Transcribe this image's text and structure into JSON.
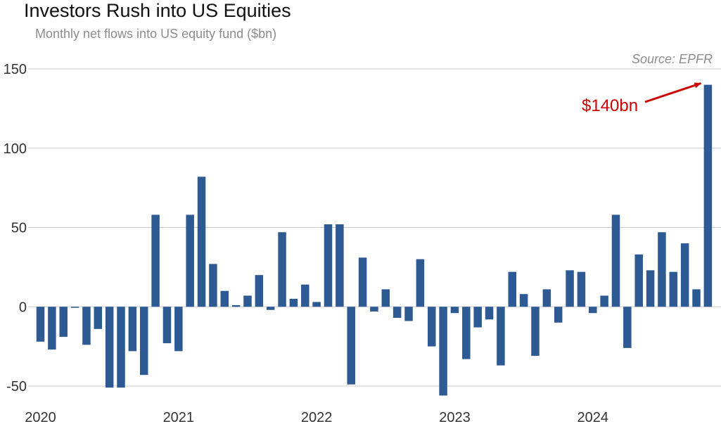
{
  "chart_data": {
    "type": "bar",
    "title": "Investors Rush into US Equities",
    "subtitle": "Monthly net flows into US equity fund ($bn)",
    "source": "Source: EPFR",
    "xlabel": "",
    "ylabel": "",
    "ylim": [
      -55,
      150
    ],
    "yticks": [
      150,
      100,
      50,
      0,
      -50
    ],
    "ytick_labels": [
      "150",
      "100",
      "50",
      "0",
      "-50"
    ],
    "xtick_labels": [
      "2020",
      "2021",
      "2022",
      "2023",
      "2024"
    ],
    "start": "2020-01",
    "series": [
      {
        "name": "Monthly net flows ($bn)",
        "color": "#2e5a93",
        "values": [
          -22,
          -27,
          -19,
          -0.5,
          -24,
          -14,
          -51,
          -51,
          -28,
          -43,
          58,
          -23,
          -28,
          58,
          82,
          27,
          10,
          1,
          7,
          20,
          -2,
          47,
          5,
          14,
          3,
          52,
          52,
          -49,
          31,
          -3,
          11,
          -7,
          -9,
          30,
          -25,
          -56,
          -4,
          -33,
          -13,
          -8,
          -37,
          22,
          8,
          -31,
          11,
          -10,
          23,
          22,
          -4,
          7,
          58,
          -26,
          33,
          23,
          47,
          22,
          40,
          11,
          140
        ]
      }
    ],
    "annotation": {
      "text": "$140bn",
      "color": "#cc0000"
    }
  }
}
